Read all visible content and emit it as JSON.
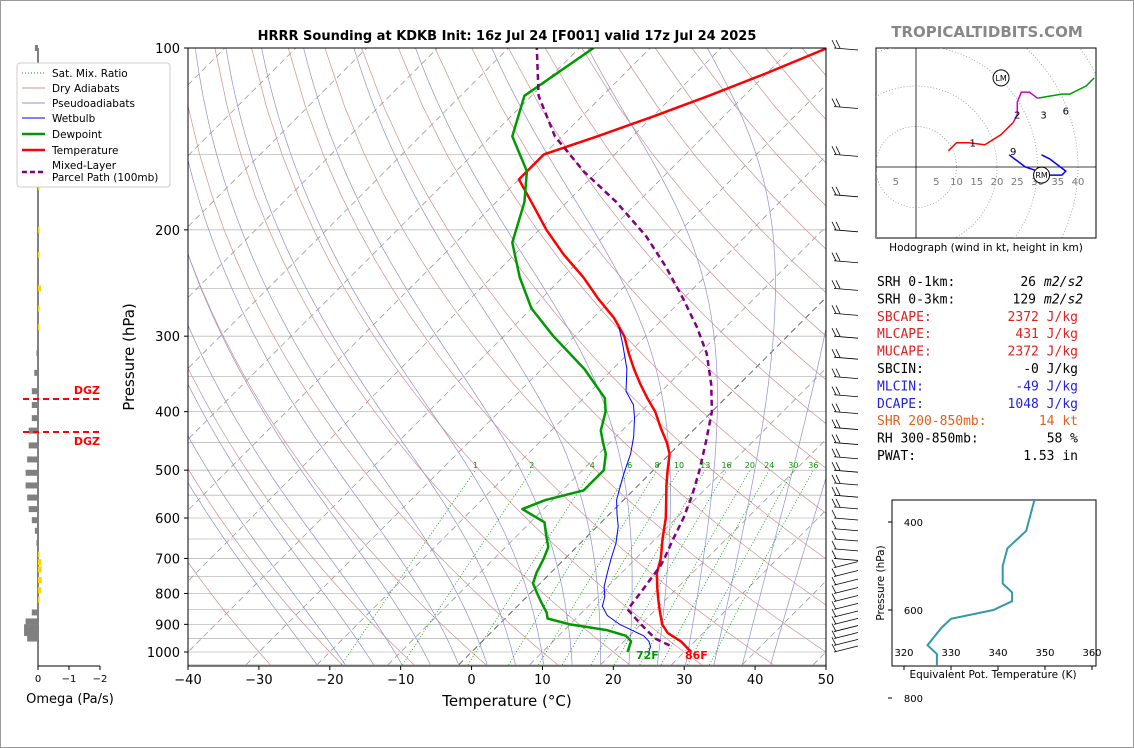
{
  "title": "HRRR Sounding at KDKB Init: 16z Jul 24 [F001] valid 17z Jul 24 2025",
  "watermark": "TROPICALTIDBITS.COM",
  "colors": {
    "temperature": "#ff0000",
    "dewpoint": "#009900",
    "wetbulb": "#0000ff",
    "parcel": "#800080",
    "dry_adiabat": "#d09090",
    "moist_adiabat": "#9090d0",
    "mixing_ratio": "#009900",
    "omega_up": "#ffd400",
    "omega_down": "#808080",
    "theta_e": "#3399aa",
    "shear": "#e06020"
  },
  "omega": {
    "xlabel": "Omega (Pa/s)",
    "xticks": [
      "0",
      "−1",
      "−2"
    ],
    "dgz_label": "DGZ"
  },
  "skewt": {
    "xlabel": "Temperature (°C)",
    "ylabel": "Pressure (hPa)",
    "xticks": [
      "−40",
      "−30",
      "−20",
      "−10",
      "0",
      "10",
      "20",
      "30",
      "40",
      "50"
    ],
    "yticks": [
      "100",
      "200",
      "300",
      "400",
      "500",
      "600",
      "700",
      "800",
      "900",
      "1000"
    ],
    "mixing_ratio_labels": [
      "1",
      "2",
      "4",
      "6",
      "8",
      "10",
      "13",
      "16",
      "20",
      "24",
      "30",
      "36"
    ],
    "surface_dewpoint_label": "72F",
    "surface_temperature_label": "86F"
  },
  "legend": {
    "items": [
      "Sat. Mix. Ratio",
      "Dry Adiabats",
      "Pseudoadiabats",
      "Wetbulb",
      "Dewpoint",
      "Temperature",
      "Mixed-Layer",
      "Parcel Path (100mb)"
    ]
  },
  "hodograph": {
    "caption": "Hodograph (wind in kt, height in km)",
    "ring_labels": [
      "5",
      "5",
      "10",
      "15",
      "20",
      "25",
      "30",
      "35",
      "40"
    ],
    "height_labels": [
      "1",
      "2",
      "3",
      "6",
      "9"
    ],
    "storm_motion_labels": [
      "LM",
      "RM"
    ]
  },
  "indices": [
    {
      "label": "SRH 0-1km:",
      "value": "26",
      "unit": "m2/s2",
      "color": "#000000"
    },
    {
      "label": "SRH 0-3km:",
      "value": "129",
      "unit": "m2/s2",
      "color": "#000000"
    },
    {
      "label": "SBCAPE:",
      "value": "2372 J/kg",
      "unit": "",
      "color": "#dd2222"
    },
    {
      "label": "MLCAPE:",
      "value": "431 J/kg",
      "unit": "",
      "color": "#dd2222"
    },
    {
      "label": "MUCAPE:",
      "value": "2372 J/kg",
      "unit": "",
      "color": "#dd2222"
    },
    {
      "label": "SBCIN:",
      "value": "-0 J/kg",
      "unit": "",
      "color": "#000000"
    },
    {
      "label": "MLCIN:",
      "value": "-49 J/kg",
      "unit": "",
      "color": "#2222dd"
    },
    {
      "label": "DCAPE:",
      "value": "1048 J/kg",
      "unit": "",
      "color": "#2222dd"
    },
    {
      "label": "SHR 200-850mb:",
      "value": "14 kt",
      "unit": "",
      "color": "#e06020"
    },
    {
      "label": "RH 300-850mb:",
      "value": "58 %",
      "unit": "",
      "color": "#000000"
    },
    {
      "label": "PWAT:",
      "value": "1.53 in",
      "unit": "",
      "color": "#000000"
    }
  ],
  "theta_e_panel": {
    "xlabel": "Equivalent Pot. Temperature (K)",
    "ylabel": "Pressure (hPa)",
    "xticks": [
      "320",
      "330",
      "340",
      "350",
      "360"
    ],
    "yticks": [
      "400",
      "600",
      "800"
    ]
  },
  "chart_data": [
    {
      "type": "line",
      "name": "skew-t",
      "title": "HRRR Sounding at KDKB Init: 16z Jul 24 [F001] valid 17z Jul 24 2025",
      "xlabel": "Temperature (°C)",
      "ylabel": "Pressure (hPa)",
      "xlim": [
        -40,
        50
      ],
      "ylim": [
        1050,
        100
      ],
      "yscale": "log",
      "skew": true,
      "series": [
        {
          "name": "Temperature",
          "points": [
            [
              31,
              1000
            ],
            [
              28,
              960
            ],
            [
              25,
              930
            ],
            [
              23,
              900
            ],
            [
              21,
              860
            ],
            [
              19,
              820
            ],
            [
              17,
              780
            ],
            [
              15,
              740
            ],
            [
              13.5,
              700
            ],
            [
              11,
              650
            ],
            [
              8.5,
              600
            ],
            [
              6,
              560
            ],
            [
              4,
              530
            ],
            [
              2,
              500
            ],
            [
              0,
              470
            ],
            [
              -2,
              450
            ],
            [
              -5,
              425
            ],
            [
              -8,
              400
            ],
            [
              -11,
              380
            ],
            [
              -14,
              360
            ],
            [
              -17,
              340
            ],
            [
              -20,
              320
            ],
            [
              -23,
              300
            ],
            [
              -27,
              280
            ],
            [
              -32,
              260
            ],
            [
              -37,
              240
            ],
            [
              -43,
              220
            ],
            [
              -49,
              200
            ],
            [
              -55,
              180
            ],
            [
              -60,
              165
            ],
            [
              -60,
              150
            ],
            [
              -55,
              140
            ],
            [
              -50,
              130
            ],
            [
              -45,
              120
            ],
            [
              -40,
              110
            ],
            [
              -35,
              100
            ]
          ]
        },
        {
          "name": "Dewpoint",
          "points": [
            [
              22,
              1000
            ],
            [
              21.5,
              980
            ],
            [
              21,
              960
            ],
            [
              19.5,
              940
            ],
            [
              16,
              920
            ],
            [
              10,
              900
            ],
            [
              6,
              880
            ],
            [
              5,
              860
            ],
            [
              3,
              830
            ],
            [
              1,
              800
            ],
            [
              -1,
              770
            ],
            [
              -2,
              740
            ],
            [
              -3,
              700
            ],
            [
              -4,
              670
            ],
            [
              -6,
              640
            ],
            [
              -8,
              610
            ],
            [
              -13,
              580
            ],
            [
              -11,
              560
            ],
            [
              -7,
              540
            ],
            [
              -7,
              500
            ],
            [
              -9,
              470
            ],
            [
              -11,
              450
            ],
            [
              -13,
              430
            ],
            [
              -15,
              400
            ],
            [
              -17,
              380
            ],
            [
              -24,
              340
            ],
            [
              -33,
              300
            ],
            [
              -40,
              270
            ],
            [
              -46,
              240
            ],
            [
              -52,
              210
            ],
            [
              -56,
              180
            ],
            [
              -60,
              160
            ],
            [
              -67,
              140
            ],
            [
              -71,
              120
            ],
            [
              -68,
              100
            ]
          ]
        },
        {
          "name": "Wetbulb",
          "points": [
            [
              25,
              1000
            ],
            [
              24.5,
              980
            ],
            [
              23.5,
              960
            ],
            [
              22,
              940
            ],
            [
              19.5,
              920
            ],
            [
              17,
              900
            ],
            [
              14,
              870
            ],
            [
              12,
              840
            ],
            [
              11,
              810
            ],
            [
              9.5,
              780
            ],
            [
              8,
              740
            ],
            [
              6.5,
              700
            ],
            [
              5,
              660
            ],
            [
              3,
              620
            ],
            [
              1,
              590
            ],
            [
              -1,
              560
            ],
            [
              -3,
              520
            ],
            [
              -4,
              500
            ],
            [
              -5.5,
              470
            ],
            [
              -7.5,
              440
            ],
            [
              -10,
              410
            ],
            [
              -12,
              390
            ],
            [
              -15,
              370
            ],
            [
              -18,
              340
            ],
            [
              -22,
              310
            ],
            [
              -25,
              290
            ]
          ]
        },
        {
          "name": "Mixed-Layer Parcel Path (100mb)",
          "points": [
            [
              27,
              975
            ],
            [
              24,
              950
            ],
            [
              20,
              900
            ],
            [
              16,
              850
            ],
            [
              15.5,
              800
            ],
            [
              15,
              760
            ],
            [
              14.5,
              720
            ],
            [
              14,
              700
            ],
            [
              12.5,
              650
            ],
            [
              11,
              600
            ],
            [
              9,
              550
            ],
            [
              6.5,
              500
            ],
            [
              3.5,
              450
            ],
            [
              0,
              400
            ],
            [
              -4,
              360
            ],
            [
              -9,
              320
            ],
            [
              -14,
              290
            ],
            [
              -20,
              260
            ],
            [
              -27,
              230
            ],
            [
              -34,
              205
            ],
            [
              -43,
              180
            ],
            [
              -52,
              160
            ],
            [
              -61,
              140
            ],
            [
              -69,
              120
            ],
            [
              -76,
              100
            ]
          ]
        }
      ]
    },
    {
      "type": "bar",
      "name": "omega",
      "xlabel": "Omega (Pa/s)",
      "xlim": [
        0.3,
        -2.4
      ],
      "dgz_levels": [
        380,
        430
      ],
      "values": [
        {
          "p": 100,
          "w": 0.1
        },
        {
          "p": 150,
          "w": 0.15
        },
        {
          "p": 170,
          "w": -0.05
        },
        {
          "p": 200,
          "w": -0.05
        },
        {
          "p": 220,
          "w": -0.05
        },
        {
          "p": 250,
          "w": -0.1
        },
        {
          "p": 270,
          "w": -0.05
        },
        {
          "p": 290,
          "w": -0.02
        },
        {
          "p": 320,
          "w": 0.05
        },
        {
          "p": 345,
          "w": 0.12
        },
        {
          "p": 370,
          "w": 0.2
        },
        {
          "p": 390,
          "w": 0.2
        },
        {
          "p": 410,
          "w": 0.2
        },
        {
          "p": 430,
          "w": 0.3
        },
        {
          "p": 455,
          "w": 0.3
        },
        {
          "p": 480,
          "w": 0.35
        },
        {
          "p": 505,
          "w": 0.4
        },
        {
          "p": 530,
          "w": 0.4
        },
        {
          "p": 555,
          "w": 0.35
        },
        {
          "p": 580,
          "w": 0.3
        },
        {
          "p": 605,
          "w": 0.2
        },
        {
          "p": 630,
          "w": 0.1
        },
        {
          "p": 660,
          "w": 0.05
        },
        {
          "p": 690,
          "w": -0.05
        },
        {
          "p": 710,
          "w": -0.1
        },
        {
          "p": 730,
          "w": -0.12
        },
        {
          "p": 760,
          "w": -0.12
        },
        {
          "p": 790,
          "w": -0.1
        },
        {
          "p": 820,
          "w": -0.05
        },
        {
          "p": 860,
          "w": 0.2
        },
        {
          "p": 890,
          "w": 0.4
        },
        {
          "p": 910,
          "w": 0.45
        },
        {
          "p": 930,
          "w": 0.45
        },
        {
          "p": 950,
          "w": 0.35
        }
      ]
    },
    {
      "type": "line",
      "name": "hodograph",
      "caption": "Hodograph (wind in kt, height in km)",
      "xlim": [
        -8,
        45
      ],
      "ylim": [
        -17,
        30
      ],
      "points": [
        [
          8,
          4
        ],
        [
          10,
          6
        ],
        [
          13,
          6
        ],
        [
          17,
          5.5
        ],
        [
          21,
          8
        ],
        [
          24,
          11
        ],
        [
          25,
          13
        ],
        [
          25,
          16
        ],
        [
          26,
          18.5
        ],
        [
          28,
          18.5
        ],
        [
          30,
          17
        ],
        [
          33,
          17.5
        ],
        [
          36,
          18
        ],
        [
          38,
          18
        ],
        [
          40,
          19
        ],
        [
          42,
          20
        ],
        [
          44,
          22
        ]
      ],
      "lm": [
        21,
        22
      ],
      "rm": [
        31,
        -2
      ],
      "rm_curve": [
        [
          23,
          3
        ],
        [
          27,
          0
        ],
        [
          30,
          -1
        ],
        [
          33,
          -2
        ],
        [
          36,
          -2
        ],
        [
          37,
          -1
        ],
        [
          33,
          2
        ],
        [
          31,
          3
        ]
      ],
      "height_label_positions": [
        [
          14,
          6
        ],
        [
          25,
          13
        ],
        [
          31.5,
          13
        ],
        [
          37,
          14
        ],
        [
          24,
          4
        ]
      ]
    },
    {
      "type": "line",
      "name": "theta-e",
      "xlabel": "Equivalent Pot. Temperature (K)",
      "ylabel": "Pressure (hPa)",
      "xlim": [
        318,
        362
      ],
      "ylim": [
        1000,
        300
      ],
      "points": [
        [
          359,
          980
        ],
        [
          349,
          970
        ],
        [
          347,
          955
        ],
        [
          343,
          935
        ],
        [
          335,
          915
        ],
        [
          332,
          900
        ],
        [
          331,
          870
        ],
        [
          331,
          840
        ],
        [
          329,
          830
        ],
        [
          329,
          795
        ],
        [
          328,
          780
        ],
        [
          328,
          750
        ],
        [
          327,
          730
        ],
        [
          327,
          700
        ],
        [
          325,
          680
        ],
        [
          328,
          640
        ],
        [
          330,
          620
        ],
        [
          339,
          600
        ],
        [
          343,
          580
        ],
        [
          343,
          560
        ],
        [
          341,
          540
        ],
        [
          341,
          500
        ],
        [
          342,
          460
        ],
        [
          346,
          420
        ],
        [
          347,
          380
        ],
        [
          348,
          340
        ],
        [
          349,
          310
        ]
      ]
    }
  ]
}
